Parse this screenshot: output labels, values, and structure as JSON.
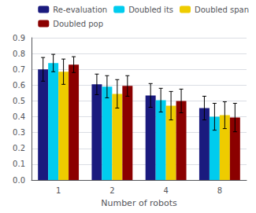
{
  "chart_data": {
    "type": "bar",
    "xlabel": "Number of robots",
    "categories": [
      1,
      2,
      4,
      8
    ],
    "series": [
      {
        "name": "Re-evaluation",
        "color": "#1a1a7e",
        "values": [
          0.7,
          0.605,
          0.535,
          0.455
        ],
        "errors": [
          0.075,
          0.065,
          0.075,
          0.075
        ]
      },
      {
        "name": "Doubled its",
        "color": "#00ccee",
        "values": [
          0.74,
          0.59,
          0.505,
          0.4
        ],
        "errors": [
          0.055,
          0.07,
          0.075,
          0.085
        ]
      },
      {
        "name": "Doubled span",
        "color": "#eecc00",
        "values": [
          0.685,
          0.545,
          0.47,
          0.41
        ],
        "errors": [
          0.08,
          0.09,
          0.09,
          0.085
        ]
      },
      {
        "name": "Doubled pop",
        "color": "#8b0000",
        "values": [
          0.73,
          0.595,
          0.5,
          0.395
        ],
        "errors": [
          0.05,
          0.065,
          0.075,
          0.09
        ]
      }
    ],
    "ylim": [
      0,
      0.9
    ],
    "yticks": [
      {
        "value": 0,
        "label": "0.0"
      },
      0.1,
      0.2,
      0.3,
      0.4,
      0.5,
      0.6,
      0.7,
      0.8,
      0.9
    ],
    "grid": true,
    "legend": "upper right"
  }
}
